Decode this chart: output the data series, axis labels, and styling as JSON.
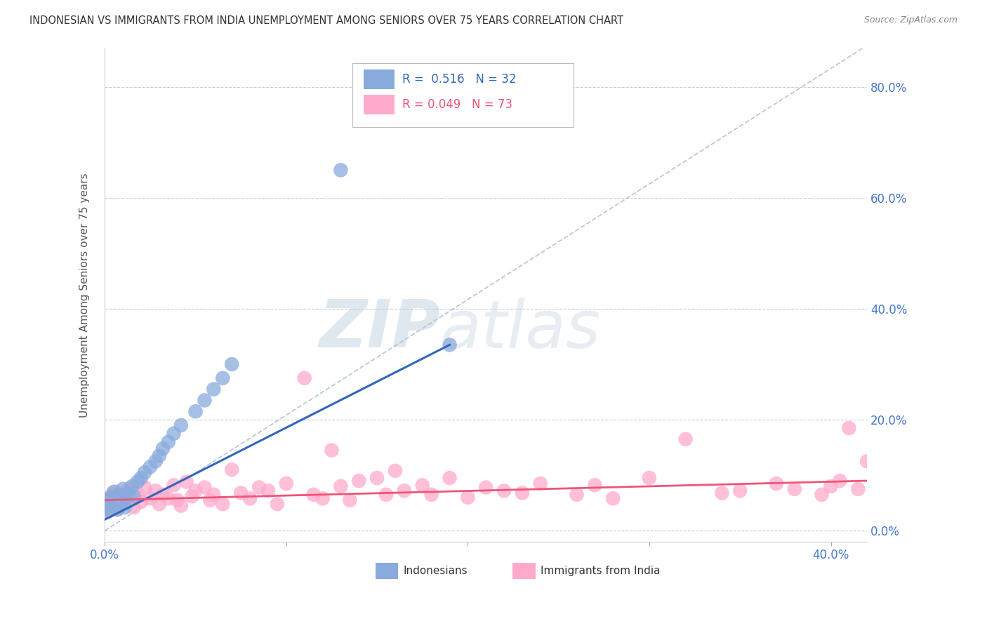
{
  "title": "INDONESIAN VS IMMIGRANTS FROM INDIA UNEMPLOYMENT AMONG SENIORS OVER 75 YEARS CORRELATION CHART",
  "source": "Source: ZipAtlas.com",
  "ylabel": "Unemployment Among Seniors over 75 years",
  "xlim": [
    0.0,
    0.42
  ],
  "ylim": [
    -0.02,
    0.87
  ],
  "yticks": [
    0.0,
    0.2,
    0.4,
    0.6,
    0.8
  ],
  "ytick_labels": [
    "0.0%",
    "20.0%",
    "40.0%",
    "60.0%",
    "80.0%"
  ],
  "xticks": [
    0.0,
    0.1,
    0.2,
    0.3,
    0.4
  ],
  "xtick_labels": [
    "0.0%",
    "",
    "",
    "",
    "40.0%"
  ],
  "color_indonesian": "#88AADD",
  "color_india": "#FFAACC",
  "color_trend_indonesian": "#3366BB",
  "color_trend_india": "#EE5577",
  "color_diag": "#AABBCC",
  "watermark_zip": "ZIP",
  "watermark_atlas": "atlas",
  "background_color": "#FFFFFF",
  "indonesian_x": [
    0.0,
    0.001,
    0.002,
    0.003,
    0.004,
    0.005,
    0.007,
    0.008,
    0.009,
    0.01,
    0.011,
    0.012,
    0.013,
    0.015,
    0.016,
    0.018,
    0.02,
    0.022,
    0.025,
    0.028,
    0.03,
    0.032,
    0.035,
    0.038,
    0.042,
    0.05,
    0.055,
    0.06,
    0.065,
    0.07,
    0.13,
    0.19
  ],
  "indonesian_y": [
    0.04,
    0.055,
    0.035,
    0.06,
    0.045,
    0.07,
    0.038,
    0.065,
    0.05,
    0.075,
    0.042,
    0.058,
    0.068,
    0.08,
    0.062,
    0.088,
    0.095,
    0.105,
    0.115,
    0.125,
    0.135,
    0.148,
    0.16,
    0.175,
    0.19,
    0.215,
    0.235,
    0.255,
    0.275,
    0.3,
    0.65,
    0.335
  ],
  "india_x": [
    0.0,
    0.001,
    0.002,
    0.003,
    0.004,
    0.005,
    0.006,
    0.007,
    0.008,
    0.01,
    0.012,
    0.013,
    0.015,
    0.016,
    0.018,
    0.02,
    0.022,
    0.025,
    0.028,
    0.03,
    0.032,
    0.035,
    0.038,
    0.04,
    0.042,
    0.045,
    0.048,
    0.05,
    0.055,
    0.058,
    0.06,
    0.065,
    0.07,
    0.075,
    0.08,
    0.085,
    0.09,
    0.095,
    0.1,
    0.11,
    0.115,
    0.12,
    0.125,
    0.13,
    0.135,
    0.14,
    0.15,
    0.155,
    0.16,
    0.165,
    0.175,
    0.18,
    0.19,
    0.2,
    0.21,
    0.22,
    0.23,
    0.24,
    0.26,
    0.27,
    0.28,
    0.3,
    0.32,
    0.34,
    0.35,
    0.37,
    0.38,
    0.395,
    0.4,
    0.405,
    0.41,
    0.415,
    0.42
  ],
  "india_y": [
    0.04,
    0.055,
    0.035,
    0.05,
    0.065,
    0.045,
    0.07,
    0.038,
    0.058,
    0.048,
    0.065,
    0.075,
    0.055,
    0.042,
    0.068,
    0.052,
    0.078,
    0.058,
    0.072,
    0.048,
    0.065,
    0.058,
    0.082,
    0.055,
    0.045,
    0.088,
    0.062,
    0.072,
    0.078,
    0.055,
    0.065,
    0.048,
    0.11,
    0.068,
    0.058,
    0.078,
    0.072,
    0.048,
    0.085,
    0.275,
    0.065,
    0.058,
    0.145,
    0.08,
    0.055,
    0.09,
    0.095,
    0.065,
    0.108,
    0.072,
    0.082,
    0.065,
    0.095,
    0.06,
    0.078,
    0.072,
    0.068,
    0.085,
    0.065,
    0.082,
    0.058,
    0.095,
    0.165,
    0.068,
    0.072,
    0.085,
    0.075,
    0.065,
    0.08,
    0.09,
    0.185,
    0.075,
    0.125
  ]
}
